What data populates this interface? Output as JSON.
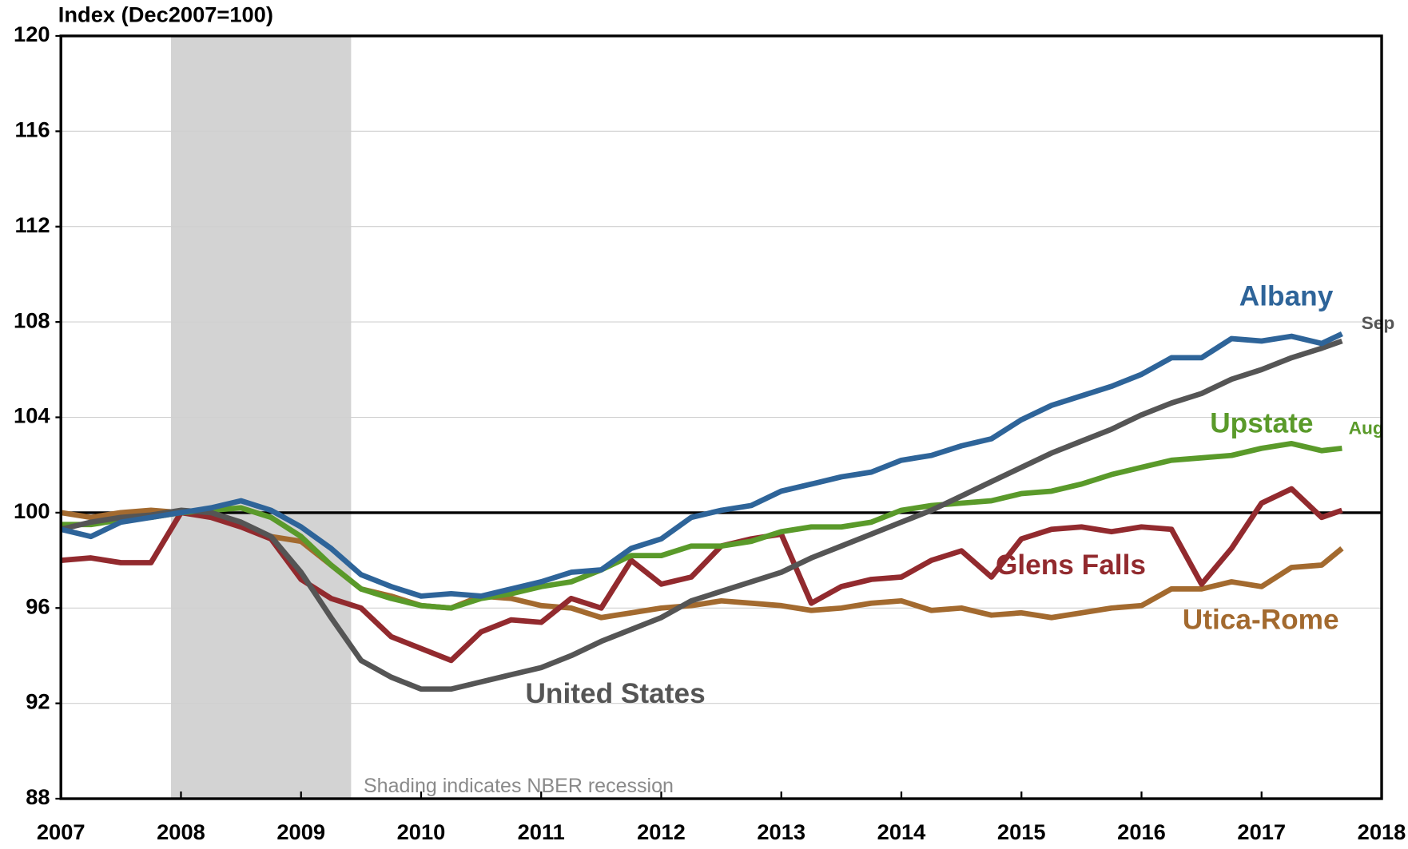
{
  "chart_data": {
    "type": "line",
    "title": "Index (Dec2007=100)",
    "note": "Shading indicates NBER recession",
    "recession": [
      2007.917,
      2009.417
    ],
    "reference_line": 100,
    "annotations": [
      "Sep",
      "Aug"
    ],
    "x": [
      2007,
      2007.25,
      2007.5,
      2007.75,
      2008,
      2008.25,
      2008.5,
      2008.75,
      2009,
      2009.25,
      2009.5,
      2009.75,
      2010,
      2010.25,
      2010.5,
      2010.75,
      2011,
      2011.25,
      2011.5,
      2011.75,
      2012,
      2012.25,
      2012.5,
      2012.75,
      2013,
      2013.25,
      2013.5,
      2013.75,
      2014,
      2014.25,
      2014.5,
      2014.75,
      2015,
      2015.25,
      2015.5,
      2015.75,
      2016,
      2016.25,
      2016.5,
      2016.75,
      2017,
      2017.25,
      2017.5,
      2017.67
    ],
    "series": [
      {
        "name": "United States",
        "color": "#555555",
        "values": [
          99.3,
          99.6,
          99.8,
          99.9,
          100.1,
          100.0,
          99.6,
          99.0,
          97.5,
          95.6,
          93.8,
          93.1,
          92.6,
          92.6,
          92.9,
          93.2,
          93.5,
          94.0,
          94.6,
          95.1,
          95.6,
          96.3,
          96.7,
          97.1,
          97.5,
          98.1,
          98.6,
          99.1,
          99.6,
          100.1,
          100.7,
          101.3,
          101.9,
          102.5,
          103.0,
          103.5,
          104.1,
          104.6,
          105.0,
          105.6,
          106.0,
          106.5,
          106.9,
          107.2
        ]
      },
      {
        "name": "Albany",
        "color": "#2e6499",
        "values": [
          99.3,
          99.0,
          99.6,
          99.8,
          100.0,
          100.2,
          100.5,
          100.1,
          99.4,
          98.5,
          97.4,
          96.9,
          96.5,
          96.6,
          96.5,
          96.8,
          97.1,
          97.5,
          97.6,
          98.5,
          98.9,
          99.8,
          100.1,
          100.3,
          100.9,
          101.2,
          101.5,
          101.7,
          102.2,
          102.4,
          102.8,
          103.1,
          103.9,
          104.5,
          104.9,
          105.3,
          105.8,
          106.5,
          106.5,
          107.3,
          107.2,
          107.4,
          107.1,
          107.5
        ]
      },
      {
        "name": "Upstate",
        "color": "#5a9a2a",
        "values": [
          99.5,
          99.5,
          99.7,
          99.8,
          100.0,
          100.1,
          100.2,
          99.8,
          99.0,
          97.8,
          96.8,
          96.4,
          96.1,
          96.0,
          96.4,
          96.6,
          96.9,
          97.1,
          97.6,
          98.2,
          98.2,
          98.6,
          98.6,
          98.8,
          99.2,
          99.4,
          99.4,
          99.6,
          100.1,
          100.3,
          100.4,
          100.5,
          100.8,
          100.9,
          101.2,
          101.6,
          101.9,
          102.2,
          102.3,
          102.4,
          102.7,
          102.9,
          102.6,
          102.7
        ]
      },
      {
        "name": "Glens Falls",
        "color": "#922a2e",
        "values": [
          98.0,
          98.1,
          97.9,
          97.9,
          100.0,
          99.8,
          99.4,
          98.9,
          97.2,
          96.4,
          96.0,
          94.8,
          94.3,
          93.8,
          95.0,
          95.5,
          95.4,
          96.4,
          96.0,
          98.0,
          97.0,
          97.3,
          98.6,
          98.9,
          99.1,
          96.2,
          96.9,
          97.2,
          97.3,
          98.0,
          98.4,
          97.3,
          98.9,
          99.3,
          99.4,
          99.2,
          99.4,
          99.3,
          97.0,
          98.5,
          100.4,
          101.0,
          99.8,
          100.1
        ]
      },
      {
        "name": "Utica-Rome",
        "color": "#a36a2f",
        "values": [
          100.0,
          99.8,
          100.0,
          100.1,
          100.0,
          99.9,
          99.5,
          99.0,
          98.8,
          97.8,
          96.8,
          96.5,
          96.1,
          96.0,
          96.5,
          96.4,
          96.1,
          96.0,
          95.6,
          95.8,
          96.0,
          96.1,
          96.3,
          96.2,
          96.1,
          95.9,
          96.0,
          96.2,
          96.3,
          95.9,
          96.0,
          95.7,
          95.8,
          95.6,
          95.8,
          96.0,
          96.1,
          96.8,
          96.8,
          97.1,
          96.9,
          97.7,
          97.8,
          98.5
        ]
      }
    ],
    "xlim": [
      2007,
      2018
    ],
    "xticks": [
      2007,
      2008,
      2009,
      2010,
      2011,
      2012,
      2013,
      2014,
      2015,
      2016,
      2017,
      2018
    ],
    "ylim": [
      88,
      120
    ],
    "yticks": [
      88,
      92,
      96,
      100,
      104,
      108,
      112,
      116,
      120
    ],
    "grid": true
  }
}
